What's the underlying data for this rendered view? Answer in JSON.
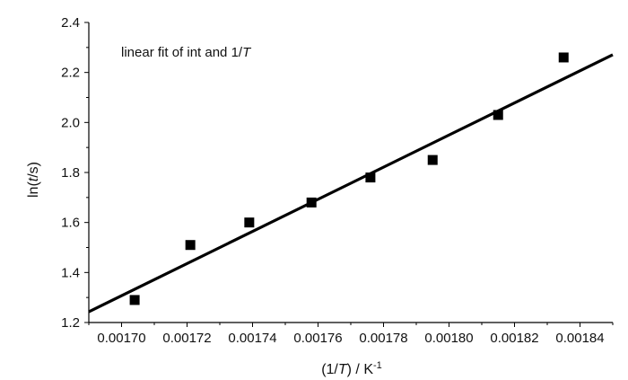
{
  "chart_data": {
    "type": "scatter",
    "annotation": "linear fit of int and 1/T",
    "xlabel": {
      "pre": "(1/",
      "var": "T",
      "post": ") / K",
      "sup": "-1"
    },
    "ylabel": {
      "pre": "ln(",
      "var": "t",
      "post": "/s)"
    },
    "xlim": [
      0.00169,
      0.00185
    ],
    "ylim": [
      1.2,
      2.4
    ],
    "x_ticks": [
      "0.00170",
      "0.00172",
      "0.00174",
      "0.00176",
      "0.00178",
      "0.00180",
      "0.00182",
      "0.00184"
    ],
    "y_ticks": [
      "1.2",
      "1.4",
      "1.6",
      "1.8",
      "2.0",
      "2.2",
      "2.4"
    ],
    "grid": false,
    "series": [
      {
        "marker": "square",
        "color": "#000000",
        "points": [
          {
            "x": 0.001704,
            "y": 1.29
          },
          {
            "x": 0.001721,
            "y": 1.51
          },
          {
            "x": 0.001739,
            "y": 1.6
          },
          {
            "x": 0.001758,
            "y": 1.68
          },
          {
            "x": 0.001776,
            "y": 1.78
          },
          {
            "x": 0.001795,
            "y": 1.85
          },
          {
            "x": 0.001815,
            "y": 2.03
          },
          {
            "x": 0.001835,
            "y": 2.26
          }
        ]
      }
    ],
    "fit_line": {
      "color": "#000000",
      "x": [
        0.00169,
        0.00185
      ],
      "y": [
        1.243,
        2.271
      ]
    }
  }
}
